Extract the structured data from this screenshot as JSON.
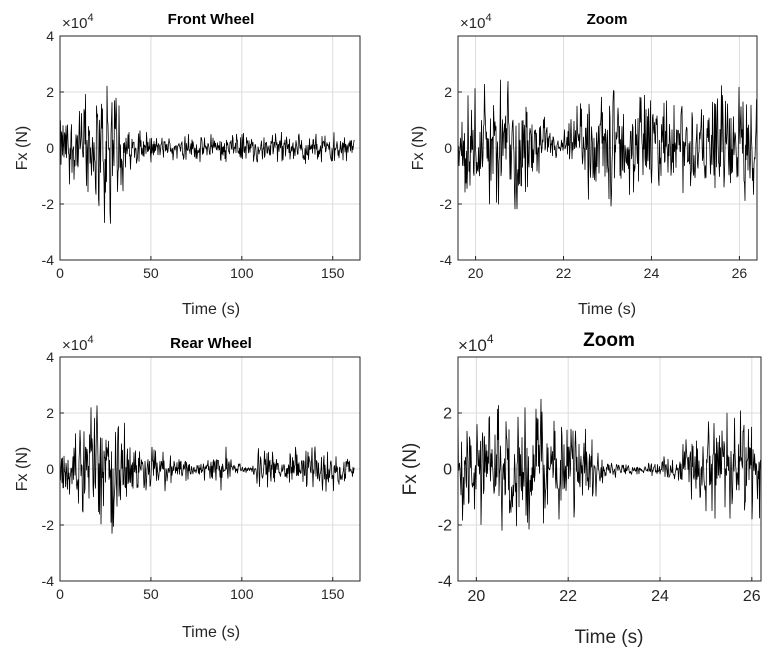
{
  "figure": {
    "background": "#ffffff",
    "signal_color": "#000000",
    "grid_color": "#dcdcdc",
    "axis_color": "#262626"
  },
  "chart_data": [
    {
      "type": "line",
      "title": "Front Wheel",
      "xlabel": "Time (s)",
      "ylabel": "Fx (N)",
      "exponent_label": "×10",
      "exponent_power": "4",
      "xlim": [
        0,
        165
      ],
      "ylim": [
        -4,
        4
      ],
      "xticks": [
        0,
        50,
        100,
        150
      ],
      "xtick_labels": [
        "0",
        "50",
        "100",
        "150"
      ],
      "yticks": [
        -4,
        -2,
        0,
        2,
        4
      ],
      "ytick_labels": [
        "-4",
        "-2",
        "0",
        "2",
        "4"
      ],
      "grid": true,
      "series": [
        {
          "x_range": [
            0,
            162
          ],
          "envelope": [
            [
              0,
              1.4
            ],
            [
              10,
              1.9
            ],
            [
              17,
              2.6
            ],
            [
              22,
              2.9
            ],
            [
              28,
              2.4
            ],
            [
              34,
              1.6
            ],
            [
              38,
              0.8
            ],
            [
              50,
              0.55
            ],
            [
              60,
              0.5
            ],
            [
              100,
              0.55
            ],
            [
              150,
              0.6
            ],
            [
              158,
              0.5
            ],
            [
              162,
              0.3
            ]
          ]
        }
      ]
    },
    {
      "type": "line",
      "title": "Zoom",
      "xlabel": "Time (s)",
      "ylabel": "Fx (N)",
      "exponent_label": "×10",
      "exponent_power": "4",
      "xlim": [
        19.6,
        26.4
      ],
      "ylim": [
        -4,
        4
      ],
      "xticks": [
        20,
        22,
        24,
        26
      ],
      "xtick_labels": [
        "20",
        "22",
        "24",
        "26"
      ],
      "yticks": [
        -4,
        -2,
        0,
        2
      ],
      "ytick_labels": [
        "-4",
        "-2",
        "0",
        "2"
      ],
      "grid": true,
      "series": [
        {
          "x_range": [
            19.6,
            26.4
          ],
          "envelope": [
            [
              19.6,
              2.2
            ],
            [
              20.5,
              2.4
            ],
            [
              21.2,
              2.0
            ],
            [
              21.6,
              1.2
            ],
            [
              21.9,
              0.4
            ],
            [
              22.2,
              1.4
            ],
            [
              22.8,
              2.2
            ],
            [
              23.5,
              2.0
            ],
            [
              24.0,
              2.5
            ],
            [
              24.4,
              1.6
            ],
            [
              25.0,
              2.1
            ],
            [
              25.6,
              2.3
            ],
            [
              26.4,
              2.0
            ]
          ]
        }
      ]
    },
    {
      "type": "line",
      "title": "Rear Wheel",
      "xlabel": "Time (s)",
      "ylabel": "Fx (N)",
      "exponent_label": "×10",
      "exponent_power": "4",
      "xlim": [
        0,
        165
      ],
      "ylim": [
        -4,
        4
      ],
      "xticks": [
        0,
        50,
        100,
        150
      ],
      "xtick_labels": [
        "0",
        "50",
        "100",
        "150"
      ],
      "yticks": [
        -4,
        -2,
        0,
        2,
        4
      ],
      "ytick_labels": [
        "-4",
        "-2",
        "0",
        "2",
        "4"
      ],
      "grid": true,
      "series": [
        {
          "x_range": [
            0,
            162
          ],
          "envelope": [
            [
              0,
              1.2
            ],
            [
              10,
              1.5
            ],
            [
              17,
              2.4
            ],
            [
              20,
              3.0
            ],
            [
              23,
              2.2
            ],
            [
              26,
              1.0
            ],
            [
              28,
              2.6
            ],
            [
              31,
              2.9
            ],
            [
              35,
              2.2
            ],
            [
              38,
              0.9
            ],
            [
              45,
              0.8
            ],
            [
              60,
              0.8
            ],
            [
              68,
              0.6
            ],
            [
              72,
              0.3
            ],
            [
              76,
              0.15
            ],
            [
              80,
              0.5
            ],
            [
              85,
              0.9
            ],
            [
              92,
              0.9
            ],
            [
              95,
              0.2
            ],
            [
              105,
              0.15
            ],
            [
              110,
              0.8
            ],
            [
              118,
              0.7
            ],
            [
              122,
              0.2
            ],
            [
              126,
              0.8
            ],
            [
              155,
              0.8
            ],
            [
              160,
              0.5
            ],
            [
              162,
              0.3
            ]
          ]
        }
      ]
    },
    {
      "type": "line",
      "title": "Zoom",
      "xlabel": "Time (s)",
      "ylabel": "Fx (N)",
      "exponent_label": "×10",
      "exponent_power": "4",
      "xlim": [
        19.6,
        26.2
      ],
      "ylim": [
        -4,
        4
      ],
      "xticks": [
        20,
        22,
        24,
        26
      ],
      "xtick_labels": [
        "20",
        "22",
        "24",
        "26"
      ],
      "yticks": [
        -4,
        -2,
        0,
        2
      ],
      "ytick_labels": [
        "-4",
        "-2",
        "0",
        "2"
      ],
      "grid": true,
      "series": [
        {
          "x_range": [
            19.6,
            26.2
          ],
          "envelope": [
            [
              19.6,
              2.2
            ],
            [
              20.5,
              2.3
            ],
            [
              21.3,
              2.6
            ],
            [
              22.0,
              2.0
            ],
            [
              22.5,
              1.3
            ],
            [
              22.9,
              0.4
            ],
            [
              23.2,
              0.25
            ],
            [
              23.7,
              0.2
            ],
            [
              24.0,
              0.5
            ],
            [
              24.3,
              0.4
            ],
            [
              24.6,
              1.3
            ],
            [
              25.3,
              2.1
            ],
            [
              25.9,
              2.3
            ],
            [
              26.2,
              1.8
            ]
          ]
        }
      ]
    }
  ]
}
